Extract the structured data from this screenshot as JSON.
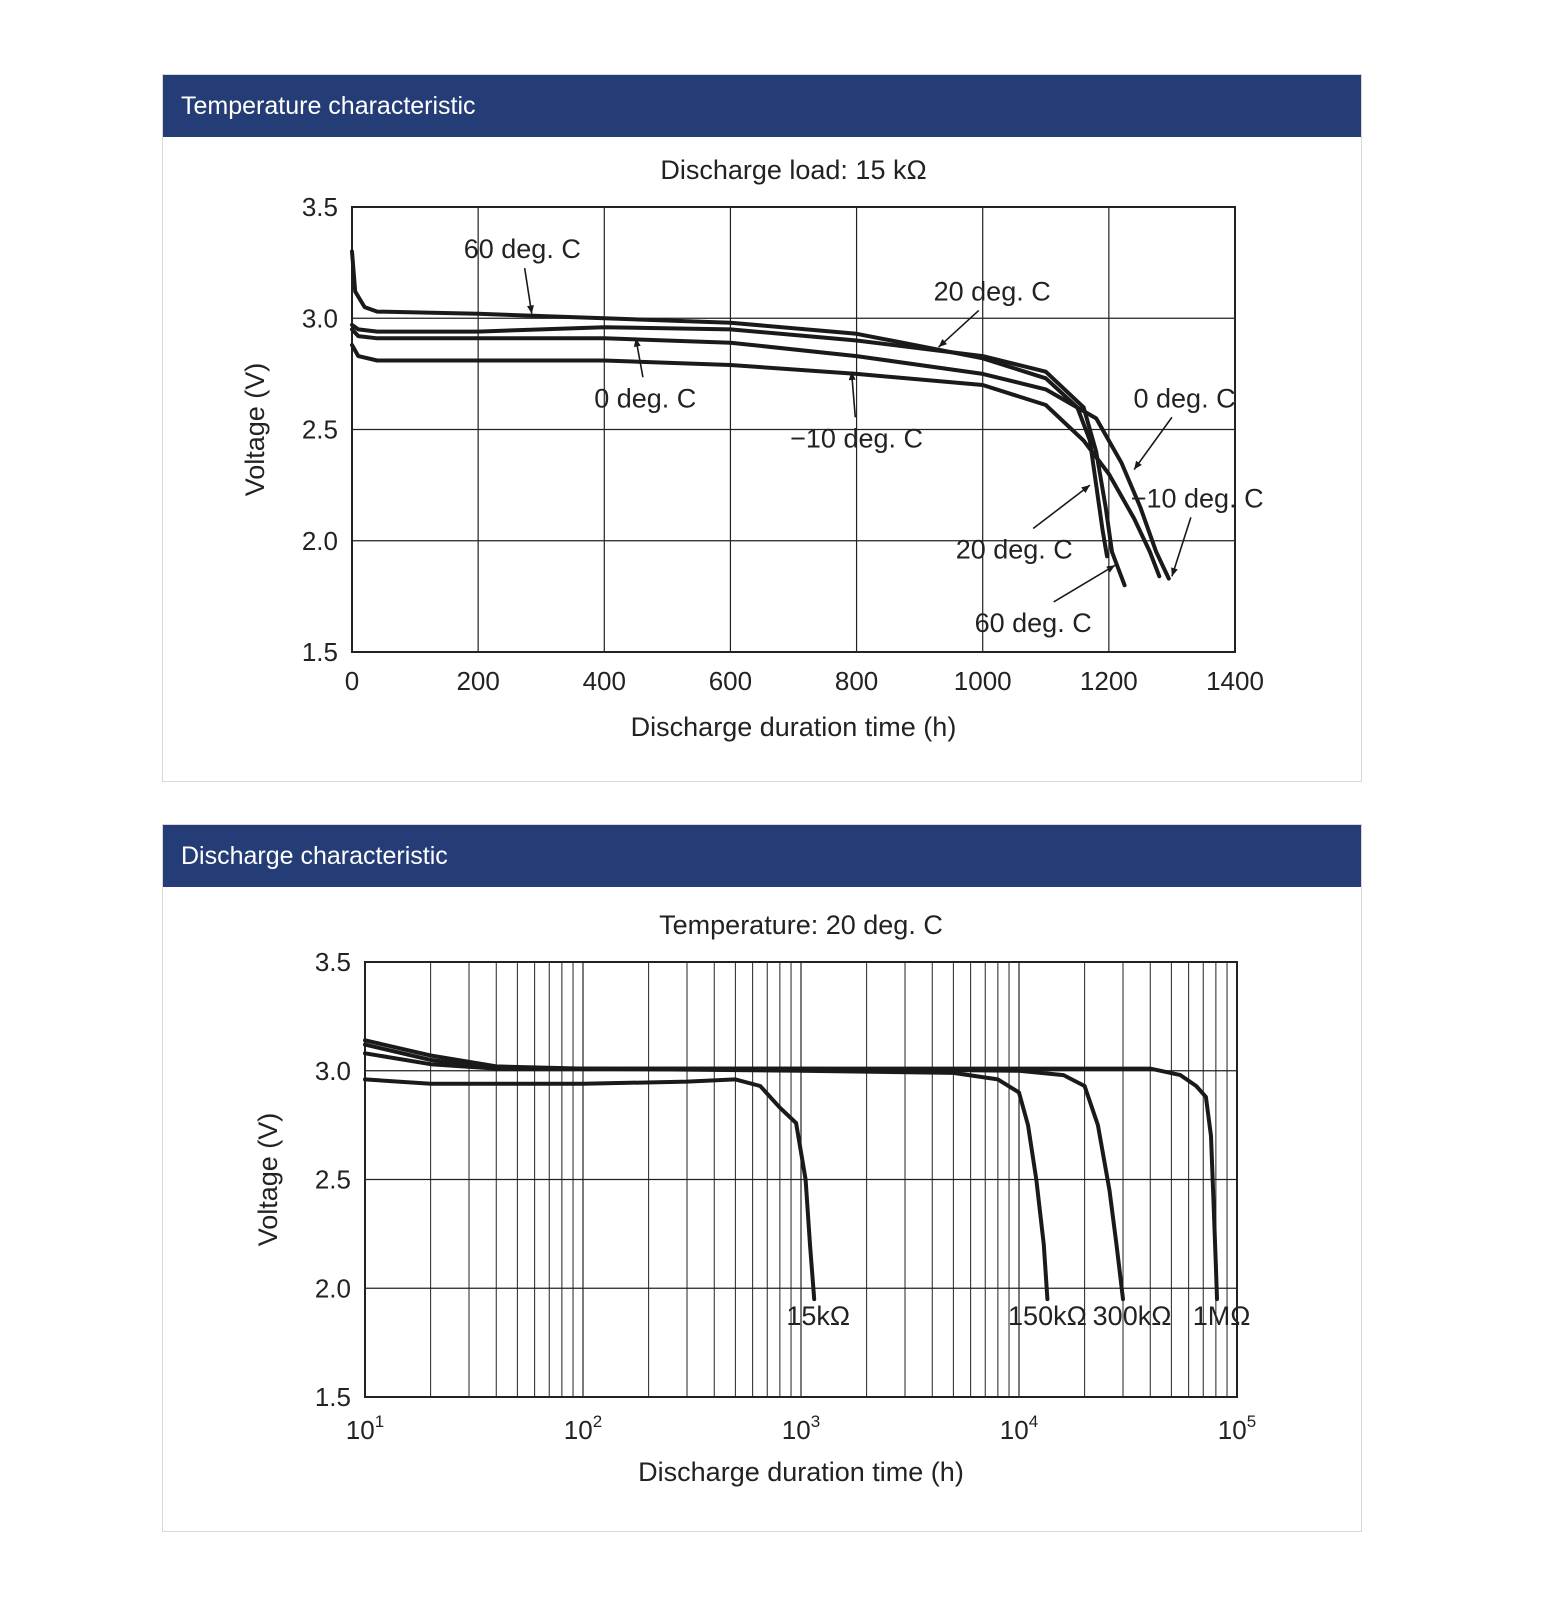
{
  "panels": [
    {
      "header": "Temperature characteristic"
    },
    {
      "header": "Discharge characteristic"
    }
  ],
  "colors": {
    "header_bg": "#253d77",
    "header_text": "#ffffff",
    "line": "#1a1a1a",
    "grid": "#222222"
  },
  "chart_data": [
    {
      "type": "line",
      "title": "Discharge load: 15 kΩ",
      "xlabel": "Discharge duration time (h)",
      "ylabel": "Voltage (V)",
      "xlim": [
        0,
        1400
      ],
      "ylim": [
        1.5,
        3.5
      ],
      "xticks": [
        0,
        200,
        400,
        600,
        800,
        1000,
        1200,
        1400
      ],
      "yticks": [
        1.5,
        2.0,
        2.5,
        3.0,
        3.5
      ],
      "grid": true,
      "series": [
        {
          "name": "60 deg. C",
          "points": [
            [
              0,
              3.3
            ],
            [
              5,
              3.12
            ],
            [
              20,
              3.05
            ],
            [
              40,
              3.03
            ],
            [
              200,
              3.02
            ],
            [
              400,
              3.0
            ],
            [
              600,
              2.98
            ],
            [
              800,
              2.93
            ],
            [
              1000,
              2.82
            ],
            [
              1100,
              2.73
            ],
            [
              1150,
              2.6
            ],
            [
              1170,
              2.45
            ],
            [
              1180,
              2.25
            ],
            [
              1190,
              2.05
            ],
            [
              1197,
              1.93
            ]
          ]
        },
        {
          "name": "20 deg. C",
          "points": [
            [
              0,
              2.97
            ],
            [
              10,
              2.95
            ],
            [
              40,
              2.94
            ],
            [
              200,
              2.94
            ],
            [
              400,
              2.96
            ],
            [
              600,
              2.95
            ],
            [
              800,
              2.9
            ],
            [
              1000,
              2.83
            ],
            [
              1100,
              2.76
            ],
            [
              1160,
              2.6
            ],
            [
              1180,
              2.4
            ],
            [
              1195,
              2.15
            ],
            [
              1205,
              1.95
            ],
            [
              1225,
              1.8
            ]
          ]
        },
        {
          "name": "0 deg. C",
          "points": [
            [
              0,
              2.95
            ],
            [
              10,
              2.92
            ],
            [
              40,
              2.91
            ],
            [
              200,
              2.91
            ],
            [
              400,
              2.91
            ],
            [
              600,
              2.89
            ],
            [
              800,
              2.83
            ],
            [
              1000,
              2.75
            ],
            [
              1100,
              2.68
            ],
            [
              1180,
              2.55
            ],
            [
              1220,
              2.35
            ],
            [
              1250,
              2.15
            ],
            [
              1275,
              1.95
            ],
            [
              1295,
              1.83
            ]
          ]
        },
        {
          "name": "-10 deg. C",
          "points": [
            [
              0,
              2.88
            ],
            [
              10,
              2.83
            ],
            [
              40,
              2.81
            ],
            [
              200,
              2.81
            ],
            [
              400,
              2.81
            ],
            [
              600,
              2.79
            ],
            [
              800,
              2.75
            ],
            [
              1000,
              2.7
            ],
            [
              1100,
              2.61
            ],
            [
              1160,
              2.45
            ],
            [
              1200,
              2.3
            ],
            [
              1240,
              2.1
            ],
            [
              1265,
              1.95
            ],
            [
              1280,
              1.84
            ]
          ]
        }
      ],
      "labels": [
        {
          "text": "60 deg. C",
          "series": "60 deg. C",
          "pos": [
            270,
            3.27
          ],
          "arrow_to": [
            285,
            3.02
          ]
        },
        {
          "text": "20 deg. C",
          "series": "20 deg. C",
          "pos": [
            1015,
            3.08
          ],
          "arrow_to": [
            930,
            2.87
          ]
        },
        {
          "text": "0 deg. C",
          "series": "0 deg. C",
          "pos": [
            465,
            2.6
          ],
          "arrow_to": [
            450,
            2.91
          ]
        },
        {
          "text": "−10 deg. C",
          "series": "-10 deg. C",
          "pos": [
            800,
            2.42
          ],
          "arrow_to": [
            792,
            2.76
          ]
        },
        {
          "text": "0 deg. C",
          "series": "0 deg. C",
          "pos": [
            1320,
            2.6
          ],
          "arrow_to": [
            1240,
            2.32
          ]
        },
        {
          "text": "−10 deg. C",
          "series": "-10 deg. C",
          "pos": [
            1340,
            2.15
          ],
          "arrow_to": [
            1300,
            1.84
          ]
        },
        {
          "text": "20 deg. C",
          "series": "20 deg. C",
          "pos": [
            1050,
            1.92
          ],
          "arrow_to": [
            1170,
            2.25
          ]
        },
        {
          "text": "60 deg. C",
          "series": "60 deg. C",
          "pos": [
            1080,
            1.59
          ],
          "arrow_to": [
            1210,
            1.89
          ]
        }
      ]
    },
    {
      "type": "line",
      "title": "Temperature: 20 deg. C",
      "xlabel": "Discharge duration time (h)",
      "ylabel": "Voltage (V)",
      "xscale": "log",
      "xlim": [
        10,
        100000
      ],
      "ylim": [
        1.5,
        3.5
      ],
      "xticks": [
        10,
        100,
        1000,
        10000,
        100000
      ],
      "xtick_labels": [
        {
          "base": "10",
          "exp": "1"
        },
        {
          "base": "10",
          "exp": "2"
        },
        {
          "base": "10",
          "exp": "3"
        },
        {
          "base": "10",
          "exp": "4"
        },
        {
          "base": "10",
          "exp": "5"
        }
      ],
      "yticks": [
        1.5,
        2.0,
        2.5,
        3.0,
        3.5
      ],
      "grid": true,
      "series": [
        {
          "name": "15kΩ",
          "points": [
            [
              10,
              2.96
            ],
            [
              20,
              2.94
            ],
            [
              100,
              2.94
            ],
            [
              300,
              2.95
            ],
            [
              500,
              2.96
            ],
            [
              650,
              2.93
            ],
            [
              800,
              2.83
            ],
            [
              950,
              2.76
            ],
            [
              1050,
              2.5
            ],
            [
              1100,
              2.2
            ],
            [
              1150,
              1.95
            ]
          ]
        },
        {
          "name": "150kΩ",
          "points": [
            [
              10,
              3.14
            ],
            [
              20,
              3.07
            ],
            [
              40,
              3.02
            ],
            [
              100,
              3.01
            ],
            [
              1000,
              3.0
            ],
            [
              5000,
              2.99
            ],
            [
              8000,
              2.96
            ],
            [
              10000,
              2.9
            ],
            [
              11000,
              2.75
            ],
            [
              12000,
              2.5
            ],
            [
              13000,
              2.2
            ],
            [
              13500,
              1.95
            ]
          ]
        },
        {
          "name": "300kΩ",
          "points": [
            [
              10,
              3.12
            ],
            [
              20,
              3.05
            ],
            [
              40,
              3.01
            ],
            [
              100,
              3.01
            ],
            [
              1000,
              3.01
            ],
            [
              10000,
              3.0
            ],
            [
              16000,
              2.98
            ],
            [
              20000,
              2.93
            ],
            [
              23000,
              2.75
            ],
            [
              26000,
              2.45
            ],
            [
              28000,
              2.2
            ],
            [
              30000,
              1.95
            ]
          ]
        },
        {
          "name": "1MΩ",
          "points": [
            [
              10,
              3.08
            ],
            [
              20,
              3.03
            ],
            [
              40,
              3.01
            ],
            [
              1000,
              3.01
            ],
            [
              10000,
              3.01
            ],
            [
              40000,
              3.01
            ],
            [
              55000,
              2.98
            ],
            [
              65000,
              2.93
            ],
            [
              72000,
              2.88
            ],
            [
              76000,
              2.7
            ],
            [
              78000,
              2.4
            ],
            [
              80000,
              2.1
            ],
            [
              81000,
              1.95
            ]
          ]
        }
      ],
      "labels": [
        {
          "text": "15kΩ",
          "series": "15kΩ",
          "pos": [
            1200,
            1.83
          ]
        },
        {
          "text": "150kΩ",
          "series": "150kΩ",
          "pos": [
            13500,
            1.83
          ]
        },
        {
          "text": "300kΩ",
          "series": "300kΩ",
          "pos": [
            33000,
            1.83
          ]
        },
        {
          "text": "1MΩ",
          "series": "1MΩ",
          "pos": [
            85000,
            1.83
          ]
        }
      ]
    }
  ]
}
